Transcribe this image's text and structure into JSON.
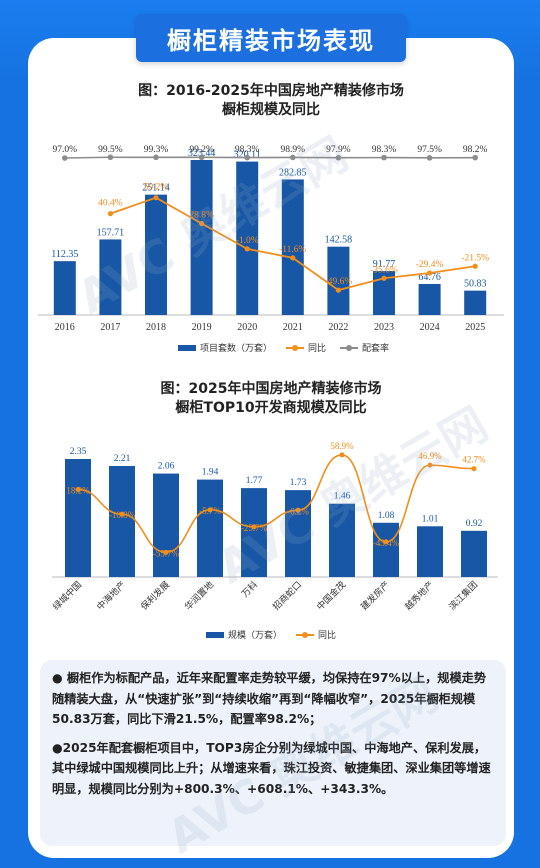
{
  "banner_title": "橱柜精装市场表现",
  "watermarks": [
    "AVC 奥维云网",
    "ALL VIEW CLOUD"
  ],
  "chart1": {
    "title_line1": "图：2016-2025年中国房地产精装修市场",
    "title_line2": "橱柜规模及同比",
    "legend": [
      "项目套数（万套）",
      "同比",
      "配套率"
    ]
  },
  "chart2": {
    "title_line1": "图：2025年中国房地产精装修市场",
    "title_line2": "橱柜TOP10开发商规模及同比",
    "legend": [
      "规模（万套）",
      "同比"
    ]
  },
  "chart_data": [
    {
      "type": "bar",
      "categories": [
        "2016",
        "2017",
        "2018",
        "2019",
        "2020",
        "2021",
        "2022",
        "2023",
        "2024",
        "2025"
      ],
      "series": [
        {
          "name": "项目套数（万套）",
          "values": [
            112.35,
            157.71,
            251.14,
            323.44,
            320.11,
            282.85,
            142.58,
            91.77,
            64.76,
            50.83
          ],
          "labels": [
            "112.35",
            "157.71",
            "251.14",
            "323.44",
            "320.11",
            "282.85",
            "142.58",
            "91.77",
            "64.76",
            "50.83"
          ]
        },
        {
          "name": "同比",
          "values": [
            null,
            40.4,
            59.2,
            28.8,
            -1.0,
            -11.6,
            -49.6,
            -35.6,
            -29.4,
            -21.5
          ],
          "labels": [
            "",
            "40.4%",
            "59.2%",
            "28.8%",
            "-1.0%",
            "-11.6%",
            "-49.6%",
            "-35.6%",
            "-29.4%",
            "-21.5%"
          ]
        },
        {
          "name": "配套率",
          "values": [
            97.0,
            99.5,
            99.3,
            99.2,
            98.3,
            98.9,
            97.9,
            98.3,
            97.5,
            98.2
          ],
          "labels": [
            "97.0%",
            "99.5%",
            "99.3%",
            "99.2%",
            "98.3%",
            "98.9%",
            "97.9%",
            "98.3%",
            "97.5%",
            "98.2%"
          ]
        }
      ]
    },
    {
      "type": "bar",
      "categories": [
        "绿城中国",
        "中海地产",
        "保利发展",
        "华润置地",
        "万科",
        "招商蛇口",
        "中国金茂",
        "建发房产",
        "越秀地产",
        "滨江集团"
      ],
      "series": [
        {
          "name": "规模（万套）",
          "values": [
            2.35,
            2.21,
            2.06,
            1.94,
            1.77,
            1.73,
            1.46,
            1.08,
            1.01,
            0.92
          ],
          "labels": [
            "2.35",
            "2.21",
            "2.06",
            "1.94",
            "1.77",
            "1.73",
            "1.46",
            "1.08",
            "1.01",
            "0.92"
          ]
        },
        {
          "name": "同比",
          "values": [
            18.2,
            -10.8,
            -55.7,
            -5.7,
            -25.7,
            -6.2,
            58.9,
            -43.4,
            46.9,
            42.7
          ],
          "labels": [
            "18.2%",
            "-10.8%",
            "-55.7%",
            "-5.7%",
            "-25.7%",
            "-6.2%",
            "58.9%",
            "-43.4%",
            "46.9%",
            "42.7%"
          ]
        }
      ]
    }
  ],
  "notes": [
    "● 橱柜作为标配产品，近年来配置率走势较平缓，均保持在97%以上，规模走势随精装大盘，从“快速扩张”到“持续收缩”再到“降幅收窄”，2025年橱柜规模50.83万套，同比下滑21.5%，配置率98.2%；",
    "●2025年配套橱柜项目中，TOP3房企分别为绿城中国、中海地产、保利发展，其中绿城中国规模同比上升；从增速来看，珠江投资、敏捷集团、深业集团等增速明显，规模同比分别为+800.3%、+608.1%、+343.3%。"
  ],
  "colors": {
    "bar": "#1857a5",
    "yoy": "#f28e1c",
    "rate": "#8c8c8c",
    "banner": "#1b6fde",
    "page": "#1672e0"
  }
}
